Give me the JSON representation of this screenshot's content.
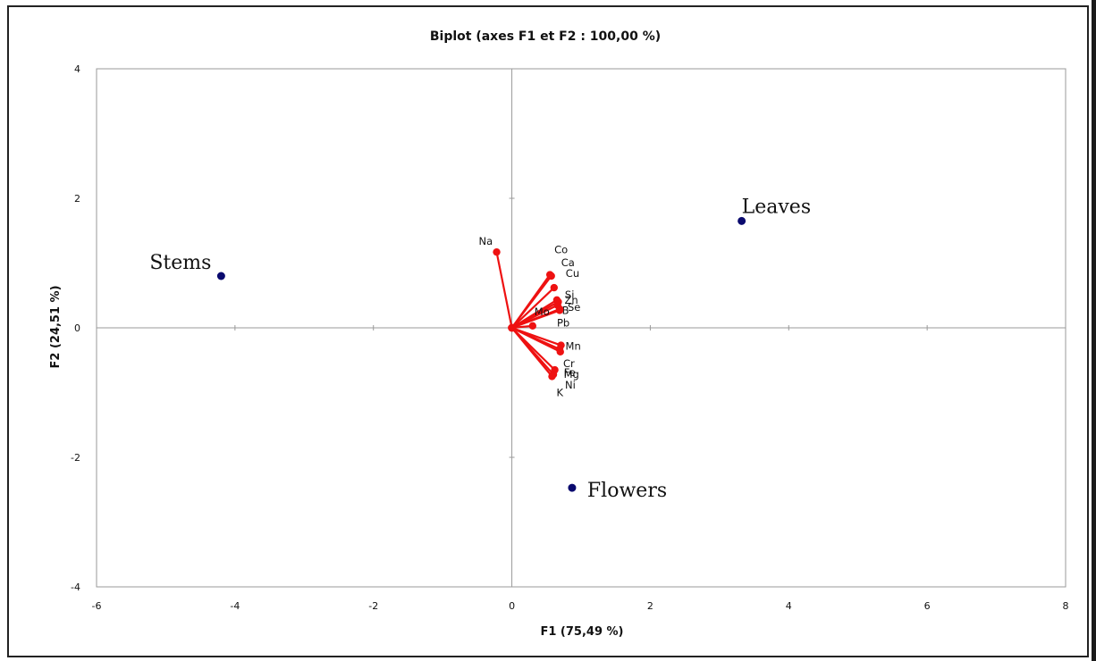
{
  "chart_data": {
    "type": "scatter",
    "subtype": "biplot",
    "title": "Biplot (axes F1 et F2 : 100,00 %)",
    "xlabel": "F1 (75,49 %)",
    "ylabel": "F2 (24,51 %)",
    "xlim": [
      -6,
      8
    ],
    "ylim": [
      -4,
      4
    ],
    "xticks": [
      -6,
      -4,
      -2,
      0,
      2,
      4,
      6,
      8
    ],
    "yticks": [
      -4,
      -2,
      0,
      2,
      4
    ],
    "grid": false,
    "colors": {
      "observations": "#0a0a6e",
      "variables": "#ee1111",
      "axes": "#9a9a9a"
    },
    "observations": [
      {
        "label": "Stems",
        "x": -4.2,
        "y": 0.8
      },
      {
        "label": "Leaves",
        "x": 3.32,
        "y": 1.65
      },
      {
        "label": "Flowers",
        "x": 0.87,
        "y": -2.47
      }
    ],
    "variables": [
      {
        "label": "Na",
        "x": -0.22,
        "y": 1.17
      },
      {
        "label": "Co",
        "x": 0.55,
        "y": 0.82
      },
      {
        "label": "Ca",
        "x": 0.57,
        "y": 0.8
      },
      {
        "label": "Cu",
        "x": 0.61,
        "y": 0.62
      },
      {
        "label": "Si",
        "x": 0.65,
        "y": 0.43
      },
      {
        "label": "Zn",
        "x": 0.67,
        "y": 0.4
      },
      {
        "label": "B",
        "x": 0.66,
        "y": 0.35
      },
      {
        "label": "Se",
        "x": 0.69,
        "y": 0.29
      },
      {
        "label": "Pb",
        "x": 0.69,
        "y": 0.27
      },
      {
        "label": "Mo",
        "x": 0.3,
        "y": 0.03
      },
      {
        "label": "Mn",
        "x": 0.71,
        "y": -0.27
      },
      {
        "label": "Cr",
        "x": 0.69,
        "y": -0.33
      },
      {
        "label": "Fe",
        "x": 0.7,
        "y": -0.37
      },
      {
        "label": "Mg",
        "x": 0.62,
        "y": -0.65
      },
      {
        "label": "Ni",
        "x": 0.6,
        "y": -0.72
      },
      {
        "label": "K",
        "x": 0.58,
        "y": -0.75
      }
    ]
  }
}
